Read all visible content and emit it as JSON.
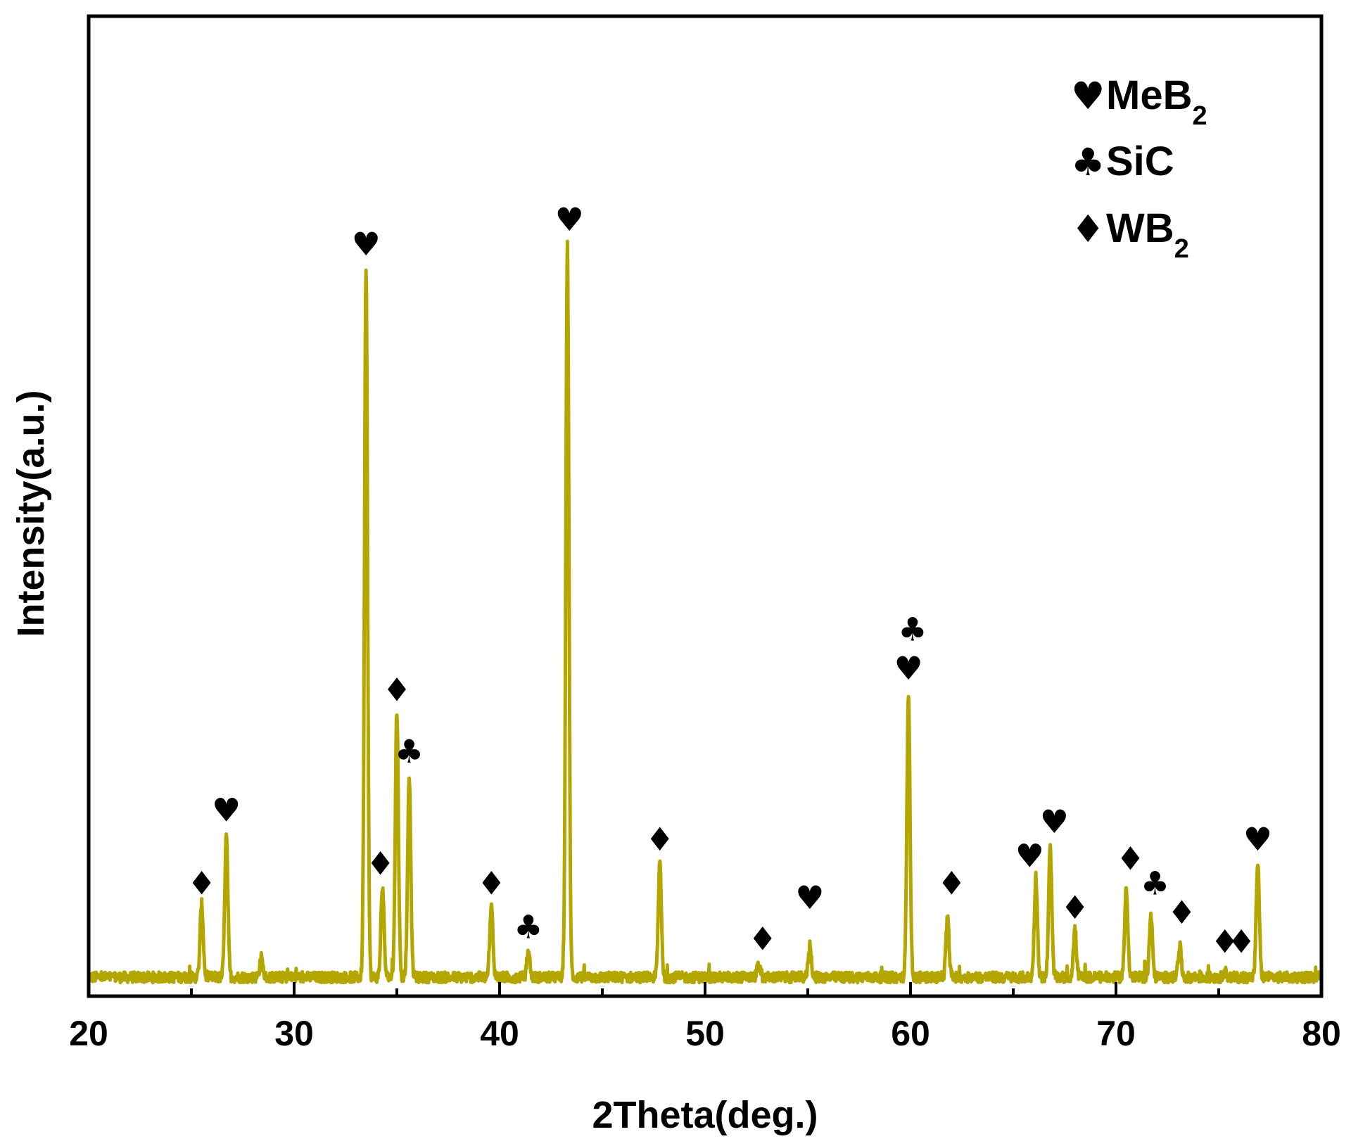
{
  "chart_data": {
    "type": "line",
    "xlabel": "2Theta(deg.)",
    "ylabel": "Intensity(a.u.)",
    "xlim": [
      20,
      80
    ],
    "ylim": [
      0,
      100
    ],
    "xticks": [
      20,
      30,
      40,
      50,
      60,
      70,
      80
    ],
    "colors": {
      "pattern": "#b3a600",
      "axes": "#000000"
    },
    "legend": {
      "position": "top-right",
      "items": [
        {
          "symbol": "heart",
          "glyph": "♥",
          "label": "MeB",
          "subscript": "2"
        },
        {
          "symbol": "club",
          "glyph": "♣",
          "label": "SiC",
          "subscript": ""
        },
        {
          "symbol": "diamond",
          "glyph": "♦",
          "label": "WB",
          "subscript": "2"
        }
      ]
    },
    "baseline": 1.5,
    "peaks": [
      {
        "x": 25.5,
        "y": 7.5,
        "phase": "WB2"
      },
      {
        "x": 26.7,
        "y": 14.5,
        "phase": "MeB2"
      },
      {
        "x": 28.4,
        "y": 2.0,
        "phase": ""
      },
      {
        "x": 33.5,
        "y": 72.8,
        "phase": "MeB2"
      },
      {
        "x": 34.3,
        "y": 9.3,
        "phase": "WB2"
      },
      {
        "x": 35.0,
        "y": 27.3,
        "phase": "WB2"
      },
      {
        "x": 35.6,
        "y": 20.8,
        "phase": "SiC"
      },
      {
        "x": 39.6,
        "y": 7.2,
        "phase": "WB2"
      },
      {
        "x": 41.4,
        "y": 2.6,
        "phase": "SiC"
      },
      {
        "x": 43.3,
        "y": 75.2,
        "phase": "MeB2"
      },
      {
        "x": 47.8,
        "y": 11.8,
        "phase": "WB2"
      },
      {
        "x": 52.6,
        "y": 1.2,
        "phase": "WB2"
      },
      {
        "x": 55.1,
        "y": 3.3,
        "phase": "MeB2"
      },
      {
        "x": 59.9,
        "y": 29.3,
        "phase": "MeB2 + SiC"
      },
      {
        "x": 61.8,
        "y": 6.0,
        "phase": "WB2"
      },
      {
        "x": 66.1,
        "y": 10.3,
        "phase": "MeB2"
      },
      {
        "x": 66.8,
        "y": 13.3,
        "phase": "MeB2"
      },
      {
        "x": 68.0,
        "y": 4.8,
        "phase": "WB2"
      },
      {
        "x": 70.5,
        "y": 9.3,
        "phase": "WB2"
      },
      {
        "x": 71.7,
        "y": 6.3,
        "phase": "SiC"
      },
      {
        "x": 73.1,
        "y": 3.2,
        "phase": "WB2"
      },
      {
        "x": 75.3,
        "y": 0.6,
        "phase": "WB2"
      },
      {
        "x": 76.9,
        "y": 11.8,
        "phase": "MeB2"
      }
    ],
    "annotations": [
      {
        "glyph": "♦",
        "phase": "WB2",
        "x": 25.5,
        "y": 10.0
      },
      {
        "glyph": "♥",
        "phase": "MeB2",
        "x": 26.7,
        "y": 17.5
      },
      {
        "glyph": "♥",
        "phase": "MeB2",
        "x": 33.5,
        "y": 75.5
      },
      {
        "glyph": "♦",
        "phase": "WB2",
        "x": 34.2,
        "y": 12.0
      },
      {
        "glyph": "♦",
        "phase": "WB2",
        "x": 35.0,
        "y": 29.8
      },
      {
        "glyph": "♣",
        "phase": "SiC",
        "x": 35.6,
        "y": 23.5
      },
      {
        "glyph": "♦",
        "phase": "WB2",
        "x": 39.6,
        "y": 10.0
      },
      {
        "glyph": "♣",
        "phase": "SiC",
        "x": 41.4,
        "y": 5.5
      },
      {
        "glyph": "♥",
        "phase": "MeB2",
        "x": 43.4,
        "y": 78.0
      },
      {
        "glyph": "♦",
        "phase": "WB2",
        "x": 47.8,
        "y": 14.5
      },
      {
        "glyph": "♦",
        "phase": "WB2",
        "x": 52.8,
        "y": 4.3
      },
      {
        "glyph": "♥",
        "phase": "MeB2",
        "x": 55.1,
        "y": 8.5
      },
      {
        "glyph": "♥",
        "phase": "MeB2",
        "x": 59.9,
        "y": 32.0
      },
      {
        "glyph": "♣",
        "phase": "SiC",
        "x": 60.1,
        "y": 36.0
      },
      {
        "glyph": "♦",
        "phase": "WB2",
        "x": 62.0,
        "y": 10.0
      },
      {
        "glyph": "♥",
        "phase": "MeB2",
        "x": 65.8,
        "y": 12.8
      },
      {
        "glyph": "♥",
        "phase": "MeB2",
        "x": 67.0,
        "y": 16.3
      },
      {
        "glyph": "♦",
        "phase": "WB2",
        "x": 68.0,
        "y": 7.5
      },
      {
        "glyph": "♦",
        "phase": "WB2",
        "x": 70.7,
        "y": 12.5
      },
      {
        "glyph": "♣",
        "phase": "SiC",
        "x": 71.9,
        "y": 10.0
      },
      {
        "glyph": "♦",
        "phase": "WB2",
        "x": 73.2,
        "y": 7.0
      },
      {
        "glyph": "♦",
        "phase": "WB2",
        "x": 75.3,
        "y": 4.0
      },
      {
        "glyph": "♦",
        "phase": "WB2",
        "x": 76.1,
        "y": 4.0
      },
      {
        "glyph": "♥",
        "phase": "MeB2",
        "x": 76.9,
        "y": 14.5
      }
    ]
  }
}
